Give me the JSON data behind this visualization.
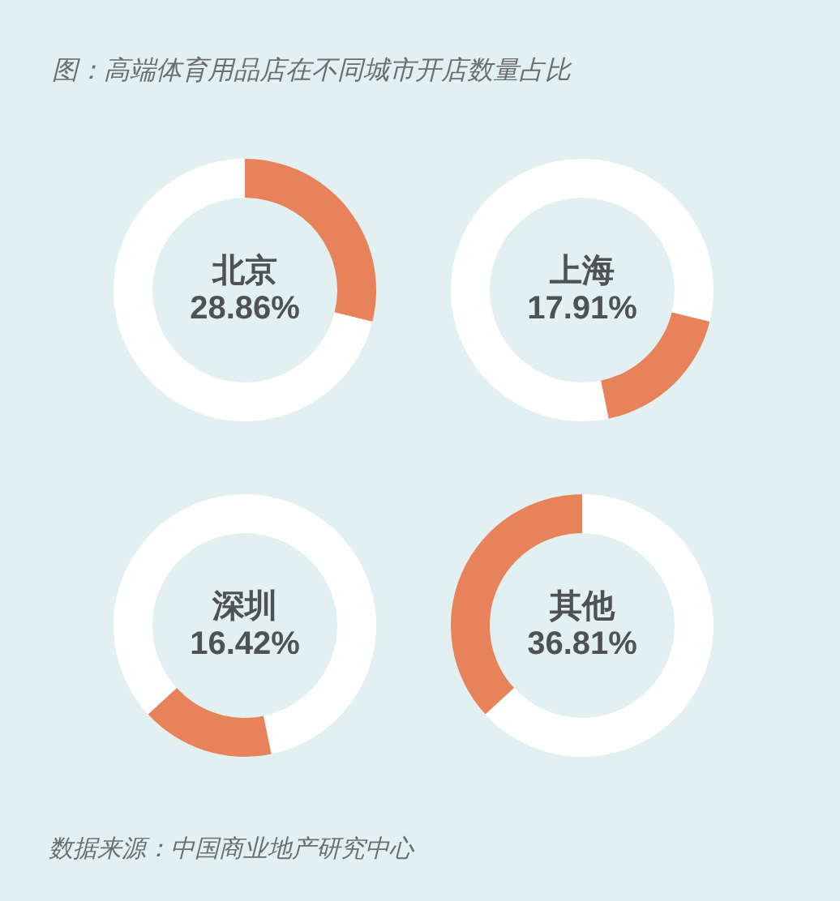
{
  "chart_data": [
    {
      "type": "other",
      "title": "图：高端体育用品店在不同城市开店数量占比",
      "annotations": [
        "数据来源：中国商业地产研究中心"
      ]
    },
    {
      "type": "donut",
      "title": "北京",
      "subtitle": "28.86%",
      "categories": [
        null,
        null
      ],
      "values": [
        28.86,
        71.14
      ],
      "colors": [
        "#e8825a",
        "#ffffff"
      ]
    },
    {
      "type": "donut",
      "title": "上海",
      "subtitle": "17.91%",
      "categories": [
        null,
        null,
        null
      ],
      "values": [
        28.86,
        17.91,
        53.23
      ],
      "colors": [
        "#ffffff",
        "#e8825a",
        "#ffffff"
      ]
    },
    {
      "type": "donut",
      "title": "深圳",
      "subtitle": "16.42%",
      "categories": [
        null,
        null,
        null
      ],
      "values": [
        46.77,
        16.42,
        36.81
      ],
      "colors": [
        "#ffffff",
        "#e8825a",
        "#ffffff"
      ]
    },
    {
      "type": "donut",
      "title": "其他",
      "subtitle": "36.81%",
      "categories": [
        null,
        null
      ],
      "values": [
        63.19,
        36.81
      ],
      "colors": [
        "#ffffff",
        "#e8825a"
      ]
    }
  ]
}
